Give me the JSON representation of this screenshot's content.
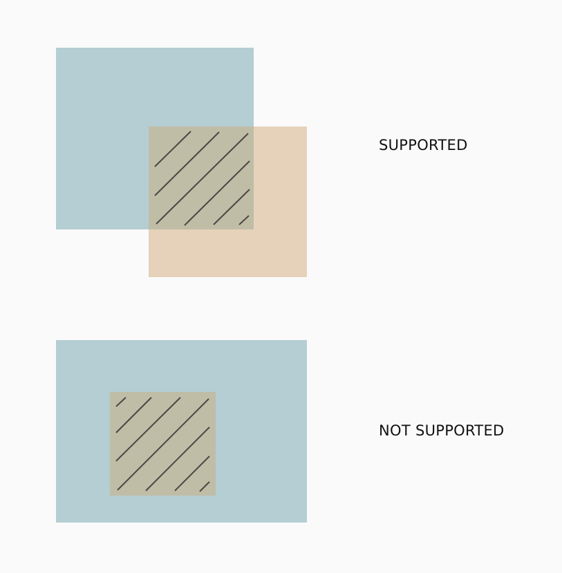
{
  "colors": {
    "background": "#fafafa",
    "blue_rect": "#b4ced3",
    "tan_rect": "#e6d2ba",
    "overlap_fill": "#c0bda7",
    "hatch_stroke": "#4a4744",
    "label_text": "#111111"
  },
  "diagrams": [
    {
      "label": "SUPPORTED",
      "overlap": "partial",
      "hatched_region": "intersection"
    },
    {
      "label": "NOT SUPPORTED",
      "overlap": "contained",
      "hatched_region": "inner-rectangle"
    }
  ]
}
